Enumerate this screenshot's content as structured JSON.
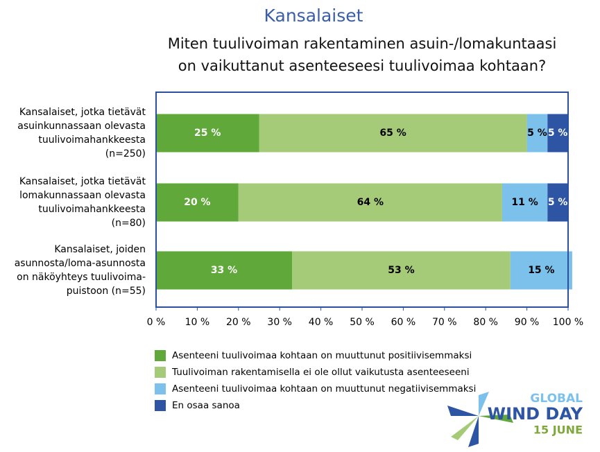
{
  "chart_data": {
    "type": "stacked-barh",
    "title": "Kansalaiset",
    "subtitle": [
      "Miten tuulivoiman rakentaminen asuin-/lomakuntaasi",
      "on vaikuttanut asenteeseesi tuulivoimaa kohtaan?"
    ],
    "categories": [
      [
        "Kansalaiset, jotka tietävät",
        "asuinkunnassaan olevasta",
        "tuulivoimahankkeesta",
        "(n=250)"
      ],
      [
        "Kansalaiset, jotka tietävät",
        "lomakunnassaan olevasta",
        "tuulivoimahankkeesta",
        "(n=80)"
      ],
      [
        "Kansalaiset, joiden",
        "asunnosta/loma-asunnosta",
        "on näköyhteys tuulivoima-",
        "puistoon (n=55)"
      ]
    ],
    "series": [
      {
        "name": "Asenteeni tuulivoimaa kohtaan on muuttunut positiivisemmaksi",
        "color": "#5fa839",
        "label_color": "#ffffff",
        "values": [
          25,
          20,
          33
        ],
        "value_labels": [
          "25 %",
          "20 %",
          "33 %"
        ]
      },
      {
        "name": "Tuulivoiman rakentamisella ei ole ollut vaikutusta asenteeseeni",
        "color": "#a6cb78",
        "label_color": "#000000",
        "values": [
          65,
          64,
          53
        ],
        "value_labels": [
          "65 %",
          "64 %",
          "53 %"
        ]
      },
      {
        "name": "Asenteeni tuulivoimaa kohtaan on muuttunut negatiivisemmaksi",
        "color": "#7cc0ec",
        "label_color": "#000000",
        "values": [
          5,
          11,
          15
        ],
        "value_labels": [
          "5 %",
          "11 %",
          "15 %"
        ]
      },
      {
        "name": "En osaa sanoa",
        "color": "#2e55a4",
        "label_color": "#ffffff",
        "values": [
          5,
          5,
          0
        ],
        "value_labels": [
          "5 %",
          "5 %",
          null
        ]
      }
    ],
    "xlim": [
      0,
      100
    ],
    "xticks": [
      {
        "value": 0,
        "label": "0 %"
      },
      {
        "value": 10,
        "label": "10 %"
      },
      {
        "value": 20,
        "label": "20 %"
      },
      {
        "value": 30,
        "label": "30 %"
      },
      {
        "value": 40,
        "label": "40 %"
      },
      {
        "value": 50,
        "label": "50 %"
      },
      {
        "value": 60,
        "label": "60 %"
      },
      {
        "value": 70,
        "label": "70 %"
      },
      {
        "value": 80,
        "label": "80 %"
      },
      {
        "value": 90,
        "label": "90 %"
      },
      {
        "value": 100,
        "label": "100 %"
      }
    ],
    "legend": "bottom"
  },
  "logo": [
    "GLOBAL",
    "WIND DAY",
    "15 JUNE"
  ]
}
